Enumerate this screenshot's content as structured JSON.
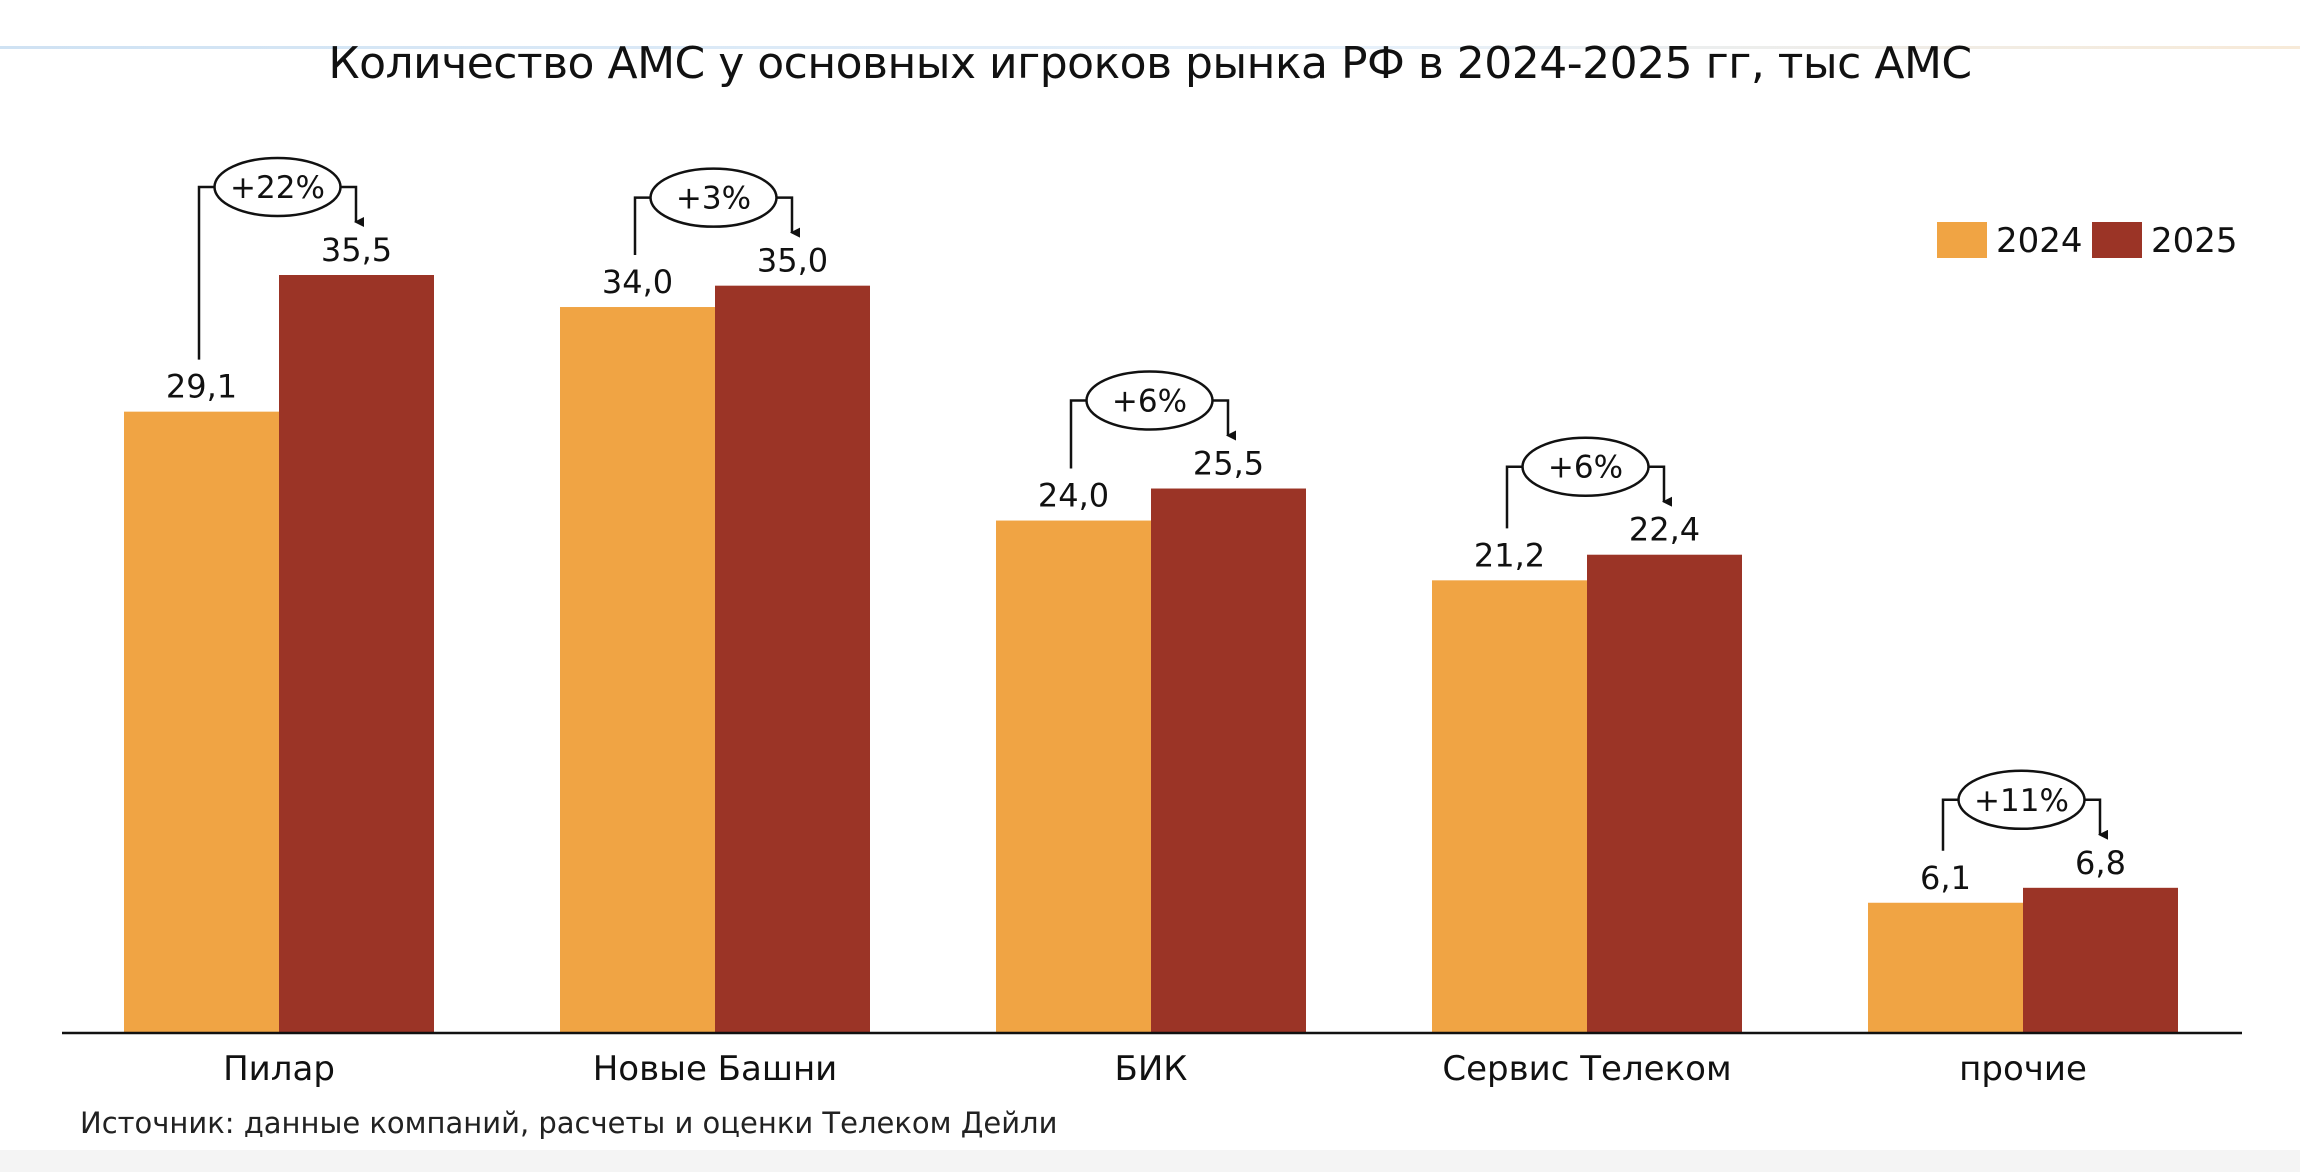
{
  "chart_data": {
    "type": "bar",
    "title": "Количество АМС у основных игроков рынка РФ в 2024-2025 гг, тыс АМС",
    "categories": [
      "Пилар",
      "Новые Башни",
      "БИК",
      "Сервис Телеком",
      "прочие"
    ],
    "series": [
      {
        "name": "2024",
        "color": "#F0A444",
        "values": [
          29.1,
          34.0,
          24.0,
          21.2,
          6.1
        ],
        "labels": [
          "29,1",
          "34,0",
          "24,0",
          "21,2",
          "6,1"
        ]
      },
      {
        "name": "2025",
        "color": "#9B3426",
        "values": [
          35.5,
          35.0,
          25.5,
          22.4,
          6.8
        ],
        "labels": [
          "35,5",
          "35,0",
          "25,5",
          "22,4",
          "6,8"
        ]
      }
    ],
    "growth": [
      "+22%",
      "+3%",
      "+6%",
      "+6%",
      "+11%"
    ],
    "ylim": [
      0,
      35.5
    ],
    "grid": false,
    "legend_position": "top-right"
  },
  "source": "Источник: данные компаний, расчеты и оценки Телеком Дейли"
}
